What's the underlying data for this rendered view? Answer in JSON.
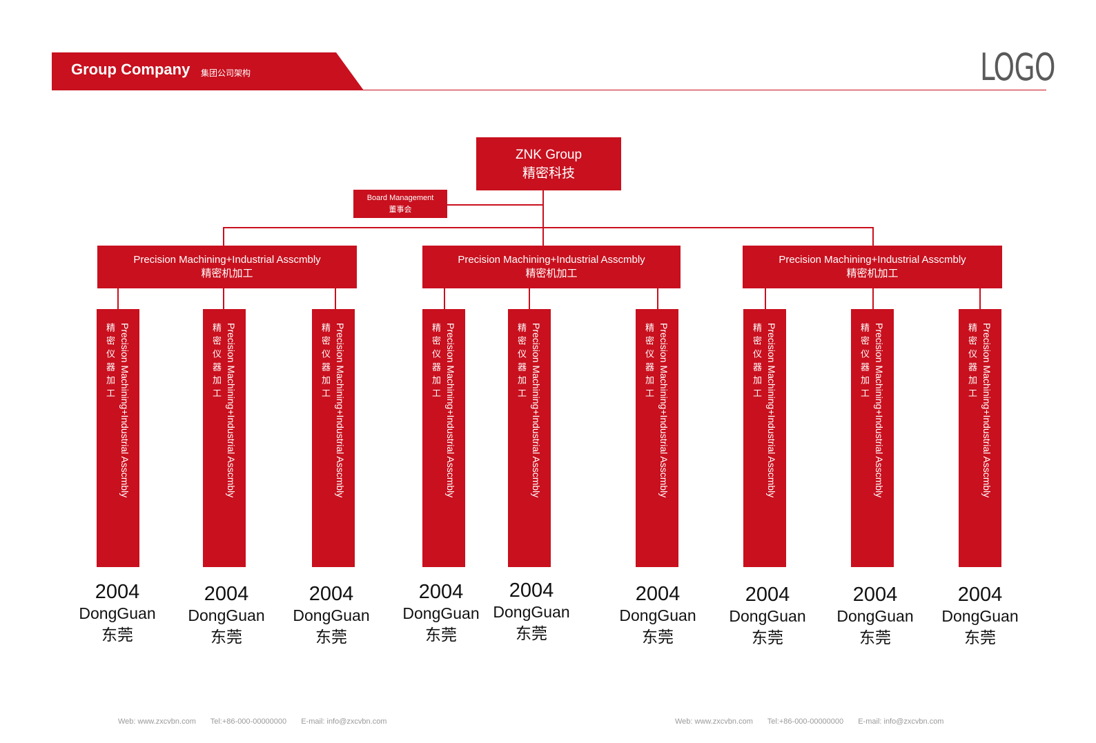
{
  "header": {
    "title": "Group Company",
    "subtitle": "集团公司架构",
    "logo": "LOGO"
  },
  "root": {
    "name_en": "ZNK Group",
    "name_zh": "精密科技"
  },
  "board": {
    "name_en": "Board Management",
    "name_zh": "董事会"
  },
  "branches": [
    {
      "en": "Precision Machining+Industrial Asscmbly",
      "zh": "精密机加工"
    },
    {
      "en": "Precision Machining+Industrial Asscmbly",
      "zh": "精密机加工"
    },
    {
      "en": "Precision Machining+Industrial Asscmbly",
      "zh": "精密机加工"
    }
  ],
  "units": [
    {
      "en": "Precision Machining+Industrial Asscmbly",
      "zh": "精密仪器加工",
      "year": "2004",
      "city": "DongGuan",
      "city_zh": "东莞"
    },
    {
      "en": "Precision Machining+Industrial Asscmbly",
      "zh": "精密仪器加工",
      "year": "2004",
      "city": "DongGuan",
      "city_zh": "东莞"
    },
    {
      "en": "Precision Machining+Industrial Asscmbly",
      "zh": "精密仪器加工",
      "year": "2004",
      "city": "DongGuan",
      "city_zh": "东莞"
    },
    {
      "en": "Precision Machining+Industrial Asscmbly",
      "zh": "精密仪器加工",
      "year": "2004",
      "city": "DongGuan",
      "city_zh": "东莞"
    },
    {
      "en": "Precision Machining+Industrial Asscmbly",
      "zh": "精密仪器加工",
      "year": "2004",
      "city": "DongGuan",
      "city_zh": "东莞"
    },
    {
      "en": "Precision Machining+Industrial Asscmbly",
      "zh": "精密仪器加工",
      "year": "2004",
      "city": "DongGuan",
      "city_zh": "东莞"
    },
    {
      "en": "Precision Machining+Industrial Asscmbly",
      "zh": "精密仪器加工",
      "year": "2004",
      "city": "DongGuan",
      "city_zh": "东莞"
    },
    {
      "en": "Precision Machining+Industrial Asscmbly",
      "zh": "精密仪器加工",
      "year": "2004",
      "city": "DongGuan",
      "city_zh": "东莞"
    },
    {
      "en": "Precision Machining+Industrial Asscmbly",
      "zh": "精密仪器加工",
      "year": "2004",
      "city": "DongGuan",
      "city_zh": "东莞"
    }
  ],
  "footer": {
    "web": "Web: www.zxcvbn.com",
    "tel": "Tel:+86-000-00000000",
    "email": "E-mail: info@zxcvbn.com"
  },
  "colors": {
    "accent": "#c8101e",
    "logo": "#5a5a5a",
    "footer_text": "#9a9a9a"
  }
}
